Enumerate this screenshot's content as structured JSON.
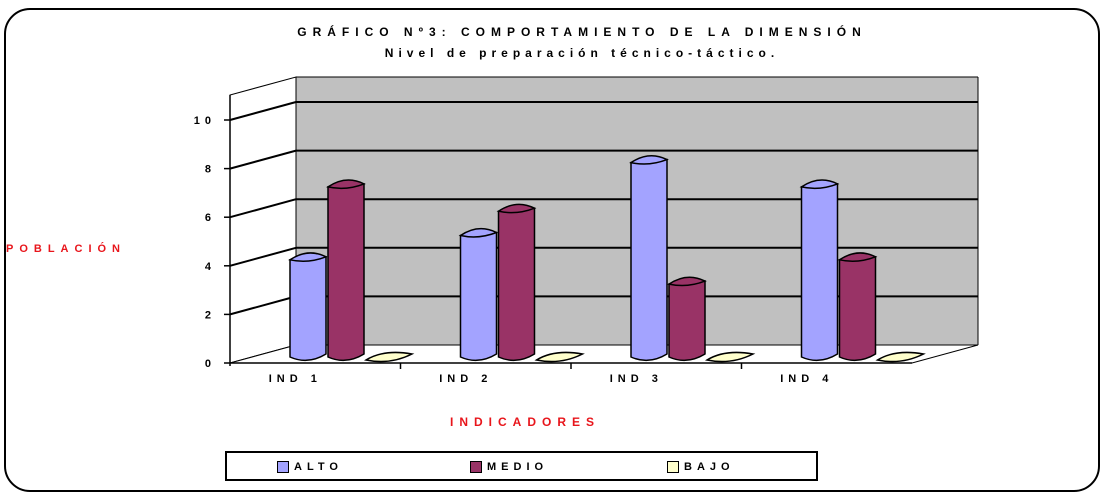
{
  "chart_data": {
    "type": "bar",
    "title": "GRÁFICO Nº3: COMPORTAMIENTO DE LA DIMENSIÓN",
    "subtitle": "Nivel de preparación técnico-táctico.",
    "xlabel": "INDICADORES",
    "ylabel": "POBLACIÓN",
    "categories": [
      "IND 1",
      "IND 2",
      "IND 3",
      "IND 4"
    ],
    "series": [
      {
        "name": "ALTO",
        "values": [
          4,
          5,
          8,
          7
        ],
        "color": "#a3a3ff"
      },
      {
        "name": "MEDIO",
        "values": [
          7,
          6,
          3,
          4
        ],
        "color": "#993366"
      },
      {
        "name": "BAJO",
        "values": [
          0,
          0,
          0,
          0
        ],
        "color": "#ffffcc"
      }
    ],
    "yticks": [
      "0",
      "2",
      "4",
      "6",
      "8",
      "10"
    ],
    "ylim": [
      0,
      10
    ],
    "grid": true,
    "legend_position": "bottom",
    "wall_color": "#c0c0c0"
  }
}
